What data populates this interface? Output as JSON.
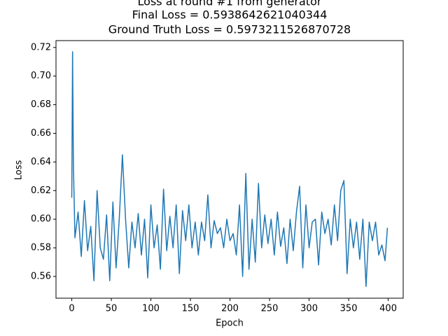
{
  "chart_data": {
    "type": "line",
    "title": "Loss at round #1 from generator",
    "subtitle": [
      "Final Loss = 0.5938642621040344",
      "Ground Truth Loss = 0.5973211526870728"
    ],
    "x_label": "Epoch",
    "y_label": "Loss",
    "x": [
      0,
      1,
      2,
      4,
      8,
      12,
      16,
      20,
      24,
      28,
      32,
      36,
      40,
      44,
      48,
      52,
      56,
      60,
      64,
      68,
      72,
      76,
      80,
      84,
      88,
      92,
      96,
      100,
      104,
      108,
      112,
      116,
      120,
      124,
      128,
      132,
      136,
      140,
      144,
      148,
      152,
      156,
      160,
      164,
      168,
      172,
      176,
      180,
      184,
      188,
      192,
      196,
      200,
      204,
      208,
      212,
      216,
      220,
      224,
      228,
      232,
      236,
      240,
      244,
      248,
      252,
      256,
      260,
      264,
      268,
      272,
      276,
      280,
      284,
      288,
      292,
      296,
      300,
      304,
      308,
      312,
      316,
      320,
      324,
      328,
      332,
      336,
      340,
      344,
      348,
      352,
      356,
      360,
      364,
      368,
      372,
      376,
      380,
      384,
      388,
      392,
      396,
      399
    ],
    "series": [
      {
        "name": "Loss",
        "color": "#1f77b4",
        "values": [
          0.615,
          0.717,
          0.64,
          0.587,
          0.605,
          0.574,
          0.613,
          0.578,
          0.595,
          0.557,
          0.62,
          0.58,
          0.572,
          0.603,
          0.557,
          0.612,
          0.566,
          0.6,
          0.645,
          0.6,
          0.566,
          0.598,
          0.58,
          0.604,
          0.575,
          0.6,
          0.559,
          0.61,
          0.58,
          0.596,
          0.565,
          0.621,
          0.578,
          0.602,
          0.58,
          0.61,
          0.562,
          0.606,
          0.585,
          0.61,
          0.58,
          0.598,
          0.575,
          0.598,
          0.585,
          0.617,
          0.58,
          0.599,
          0.59,
          0.594,
          0.58,
          0.6,
          0.585,
          0.59,
          0.575,
          0.61,
          0.56,
          0.632,
          0.565,
          0.6,
          0.57,
          0.625,
          0.58,
          0.603,
          0.583,
          0.6,
          0.575,
          0.605,
          0.581,
          0.594,
          0.569,
          0.6,
          0.578,
          0.605,
          0.623,
          0.566,
          0.61,
          0.58,
          0.598,
          0.6,
          0.568,
          0.605,
          0.59,
          0.6,
          0.582,
          0.61,
          0.585,
          0.62,
          0.627,
          0.562,
          0.6,
          0.58,
          0.598,
          0.572,
          0.6,
          0.553,
          0.598,
          0.585,
          0.598,
          0.575,
          0.582,
          0.571,
          0.594
        ]
      }
    ],
    "xlim": [
      -19.95,
      418.95
    ],
    "xticks": [
      0,
      50,
      100,
      150,
      200,
      250,
      300,
      350,
      400
    ],
    "ylim": [
      0.5448,
      0.7248
    ],
    "yticks": [
      0.56,
      0.58,
      {
        "value": 0.6,
        "label": "0.60"
      },
      0.62,
      0.64,
      0.66,
      0.68,
      {
        "value": 0.7,
        "label": "0.70"
      },
      0.72
    ],
    "grid": false
  }
}
